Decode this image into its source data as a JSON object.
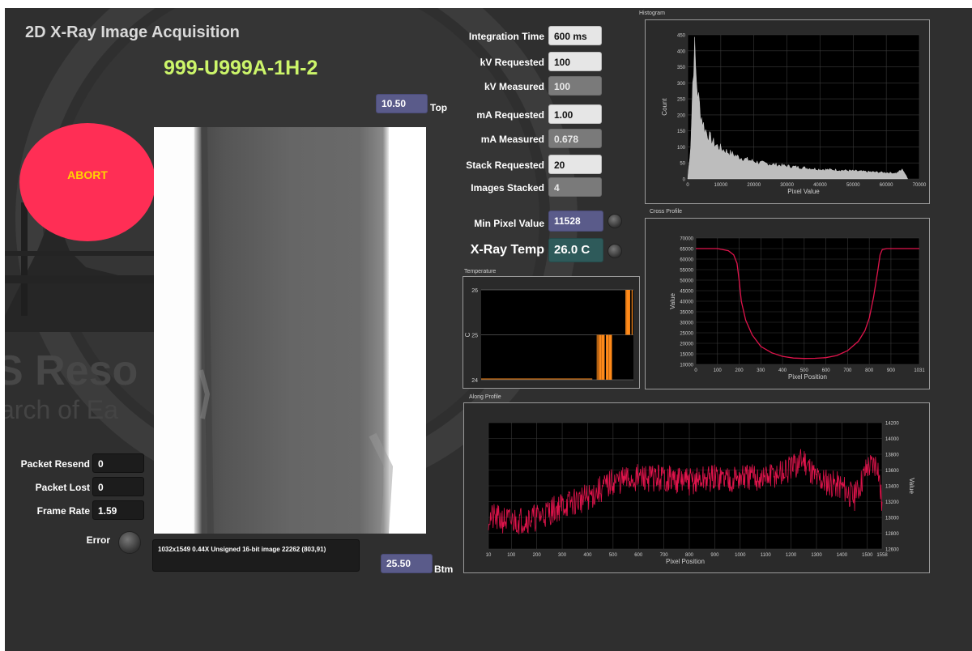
{
  "app": {
    "title": "2D X-Ray Image Acquisition",
    "sample_id": "999-U999A-1H-2",
    "abort_label": "ABORT"
  },
  "position": {
    "top_value": "10.50",
    "top_label": "Top",
    "btm_value": "25.50",
    "btm_label": "Btm"
  },
  "image_info": "1032x1549 0.44X Unsigned 16-bit image 22262   (803,91)",
  "network": {
    "packet_resend_label": "Packet Resend",
    "packet_resend": "0",
    "packet_lost_label": "Packet Lost",
    "packet_lost": "0",
    "frame_rate_label": "Frame Rate",
    "frame_rate": "1.59",
    "error_label": "Error"
  },
  "params": {
    "integration_time_label": "Integration Time",
    "integration_time": "600 ms",
    "kv_requested_label": "kV Requested",
    "kv_requested": "100",
    "kv_measured_label": "kV Measured",
    "kv_measured": "100",
    "ma_requested_label": "mA Requested",
    "ma_requested": "1.00",
    "ma_measured_label": "mA Measured",
    "ma_measured": "0.678",
    "stack_requested_label": "Stack Requested",
    "stack_requested": "20",
    "images_stacked_label": "Images Stacked",
    "images_stacked": "4",
    "min_pixel_label": "Min Pixel Value",
    "min_pixel": "11528",
    "xray_temp_label": "X-Ray Temp",
    "xray_temp": "26.0 C"
  },
  "background_watermark": [
    "S Reso",
    "arch of Ea"
  ],
  "colors": {
    "abort": "#ff2e55",
    "abort_text": "#ffd500",
    "sample_id": "#ccf56a",
    "profile_line": "#e0144c",
    "temp_trace": "#ff8a1a",
    "histogram_fill": "#bdbdbd"
  },
  "chart_data": [
    {
      "id": "histogram",
      "type": "area",
      "title": "Histogram",
      "xlabel": "Pixel Value",
      "ylabel": "Count",
      "xlim": [
        0,
        70000
      ],
      "ylim": [
        0,
        450
      ],
      "xticks": [
        "0",
        "10000",
        "20000",
        "30000",
        "40000",
        "50000",
        "60000",
        "70000"
      ],
      "yticks": [
        "0",
        "50",
        "100",
        "150",
        "200",
        "250",
        "300",
        "350",
        "400",
        "450"
      ],
      "x": [
        0,
        1000,
        1500,
        2000,
        2500,
        3000,
        4000,
        5000,
        6000,
        8000,
        10000,
        12000,
        15000,
        18000,
        22000,
        26000,
        30000,
        35000,
        40000,
        45000,
        50000,
        55000,
        60000,
        63000,
        65000,
        66000,
        66500
      ],
      "y": [
        0,
        120,
        300,
        415,
        330,
        270,
        200,
        160,
        140,
        110,
        95,
        85,
        70,
        60,
        50,
        45,
        40,
        35,
        30,
        28,
        25,
        22,
        20,
        18,
        30,
        10,
        0
      ],
      "grid": true
    },
    {
      "id": "cross_profile",
      "type": "line",
      "title": "Cross Profile",
      "xlabel": "Pixel Position",
      "ylabel": "Value",
      "xlim": [
        0,
        1031
      ],
      "ylim": [
        10000,
        70000
      ],
      "xticks": [
        "0",
        "100",
        "200",
        "300",
        "400",
        "500",
        "600",
        "700",
        "800",
        "900",
        "1031"
      ],
      "yticks": [
        "10000",
        "15000",
        "20000",
        "25000",
        "30000",
        "35000",
        "40000",
        "45000",
        "50000",
        "55000",
        "60000",
        "65000",
        "70000"
      ],
      "x": [
        0,
        100,
        150,
        175,
        190,
        200,
        210,
        230,
        260,
        300,
        350,
        400,
        450,
        500,
        550,
        600,
        650,
        700,
        750,
        780,
        800,
        820,
        840,
        850,
        860,
        880,
        900,
        1031
      ],
      "y": [
        65000,
        65000,
        64000,
        62000,
        58000,
        50000,
        40000,
        31000,
        24000,
        18500,
        15500,
        13800,
        13000,
        12800,
        12900,
        13200,
        14200,
        16500,
        21000,
        26000,
        32000,
        42000,
        55000,
        62000,
        64500,
        65000,
        65000,
        65000
      ],
      "grid": true
    },
    {
      "id": "along_profile",
      "type": "line",
      "title": "Along Profile",
      "xlabel": "Pixel Position",
      "ylabel": "Value",
      "xlim": [
        10,
        1558
      ],
      "ylim": [
        12600,
        14200
      ],
      "xticks": [
        "10",
        "100",
        "200",
        "300",
        "400",
        "500",
        "600",
        "700",
        "800",
        "900",
        "1000",
        "1100",
        "1200",
        "1300",
        "1400",
        "1500",
        "1558"
      ],
      "yticks": [
        "12600",
        "12800",
        "13000",
        "13200",
        "13400",
        "13600",
        "13800",
        "14000",
        "14200"
      ],
      "x": [
        10,
        100,
        200,
        300,
        400,
        450,
        500,
        600,
        700,
        800,
        900,
        1000,
        1100,
        1200,
        1250,
        1300,
        1400,
        1450,
        1500,
        1540,
        1558
      ],
      "y": [
        13000,
        12950,
        13000,
        13150,
        13250,
        13350,
        13450,
        13500,
        13500,
        13450,
        13500,
        13500,
        13500,
        13600,
        13750,
        13500,
        13400,
        13250,
        13650,
        13700,
        13150
      ],
      "noise_amplitude": 180,
      "grid": true
    },
    {
      "id": "temperature",
      "type": "line",
      "title": "Temperature",
      "ylabel": "C",
      "ylim": [
        24,
        26
      ],
      "yticks": [
        "24",
        "25",
        "26"
      ],
      "x": [
        0,
        0.7,
        0.73,
        0.85,
        0.88,
        0.96,
        0.98,
        1.0
      ],
      "y": [
        24,
        24,
        24.7,
        25,
        24.5,
        26,
        25,
        26
      ]
    }
  ]
}
